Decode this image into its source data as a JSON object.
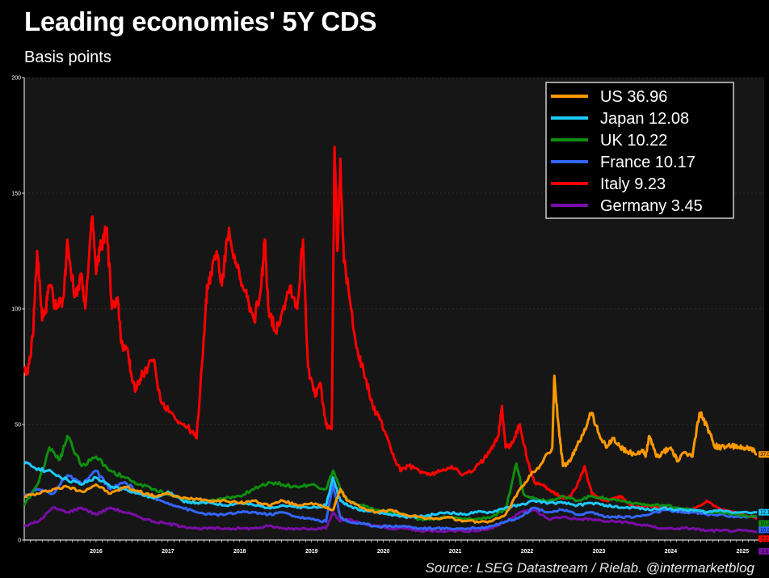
{
  "title": "Leading economies' 5Y CDS",
  "subtitle": "Basis points",
  "source": "Source: LSEG Datastream / Rielab. @intermarketblog",
  "colors": {
    "background": "#000000",
    "plot": "#161616",
    "grid": "#444444"
  },
  "chart_data": {
    "type": "line",
    "title": "Leading economies' 5Y CDS",
    "subtitle": "Basis points",
    "ylim": [
      0,
      200
    ],
    "yticks": [
      0,
      50,
      100,
      150,
      200
    ],
    "xlim": [
      2015.5,
      2025.8
    ],
    "xticks": [
      2016,
      2017,
      2018,
      2019,
      2020,
      2021,
      2022,
      2023,
      2024,
      2025
    ],
    "grid": true,
    "legend_position": "top-right",
    "series": [
      {
        "name": "US",
        "legend": "US 36.96",
        "color": "#ff9900",
        "end_label": "37.0",
        "x": [
          2015.5,
          2015.7,
          2015.9,
          2016.1,
          2016.3,
          2016.5,
          2016.7,
          2016.9,
          2017.1,
          2017.3,
          2017.5,
          2017.7,
          2017.9,
          2018.1,
          2018.3,
          2018.5,
          2018.7,
          2018.9,
          2019.1,
          2019.3,
          2019.5,
          2019.7,
          2019.8,
          2019.9,
          2020.0,
          2020.2,
          2020.4,
          2020.6,
          2020.8,
          2021.0,
          2021.2,
          2021.4,
          2021.6,
          2021.8,
          2022.0,
          2022.2,
          2022.4,
          2022.55,
          2022.7,
          2022.85,
          2022.88,
          2022.95,
          2023.0,
          2023.1,
          2023.2,
          2023.3,
          2023.4,
          2023.5,
          2023.6,
          2023.7,
          2023.8,
          2023.9,
          2024.0,
          2024.1,
          2024.15,
          2024.2,
          2024.3,
          2024.4,
          2024.5,
          2024.6,
          2024.7,
          2024.8,
          2024.9,
          2025.0,
          2025.1,
          2025.2,
          2025.3,
          2025.4,
          2025.5,
          2025.6,
          2025.7
        ],
        "y": [
          19,
          20,
          22,
          23,
          21,
          24,
          20,
          23,
          21,
          19,
          20,
          18,
          18,
          17,
          17,
          16,
          17,
          15,
          17,
          15,
          16,
          14,
          13,
          22,
          17,
          14,
          12,
          13,
          11,
          10,
          9,
          10,
          8,
          8,
          8,
          11,
          22,
          28,
          33,
          40,
          71,
          45,
          32,
          34,
          41,
          48,
          55,
          46,
          40,
          44,
          40,
          38,
          37,
          39,
          36,
          45,
          36,
          38,
          40,
          34,
          38,
          36,
          55,
          50,
          41,
          40,
          41,
          40,
          40,
          40,
          37
        ]
      },
      {
        "name": "Japan",
        "legend": "Japan 12.08",
        "color": "#1ec9ff",
        "end_label": "12.1",
        "x": [
          2015.5,
          2015.7,
          2015.9,
          2016.1,
          2016.3,
          2016.5,
          2016.7,
          2016.9,
          2017.1,
          2017.3,
          2017.5,
          2017.7,
          2017.9,
          2018.1,
          2018.3,
          2018.5,
          2018.7,
          2018.9,
          2019.1,
          2019.3,
          2019.5,
          2019.7,
          2019.8,
          2019.9,
          2020.0,
          2020.2,
          2020.4,
          2020.6,
          2020.8,
          2021.0,
          2021.2,
          2021.4,
          2021.6,
          2021.8,
          2022.0,
          2022.2,
          2022.4,
          2022.6,
          2022.8,
          2023.0,
          2023.2,
          2023.4,
          2023.6,
          2023.8,
          2024.0,
          2024.2,
          2024.4,
          2024.6,
          2024.8,
          2025.0,
          2025.2,
          2025.4,
          2025.7
        ],
        "y": [
          33,
          31,
          29,
          26,
          24,
          27,
          23,
          22,
          20,
          18,
          21,
          17,
          16,
          16,
          15,
          16,
          15,
          14,
          15,
          14,
          14,
          15,
          27,
          17,
          15,
          13,
          12,
          11,
          10,
          10,
          11,
          12,
          11,
          12,
          12,
          14,
          15,
          17,
          16,
          16,
          15,
          16,
          15,
          14,
          14,
          13,
          14,
          13,
          13,
          12,
          13,
          12,
          12
        ]
      },
      {
        "name": "UK",
        "legend": "UK 10.22",
        "color": "#0e8f0e",
        "end_label": "10.2",
        "x": [
          2015.5,
          2015.7,
          2015.85,
          2016.0,
          2016.1,
          2016.3,
          2016.5,
          2016.7,
          2016.9,
          2017.1,
          2017.3,
          2017.5,
          2017.7,
          2017.9,
          2018.1,
          2018.3,
          2018.5,
          2018.7,
          2018.9,
          2019.1,
          2019.3,
          2019.5,
          2019.7,
          2019.8,
          2019.9,
          2020.0,
          2020.2,
          2020.4,
          2020.6,
          2020.8,
          2021.0,
          2021.2,
          2021.4,
          2021.6,
          2021.8,
          2022.0,
          2022.2,
          2022.35,
          2022.45,
          2022.6,
          2022.8,
          2023.0,
          2023.2,
          2023.4,
          2023.6,
          2023.8,
          2024.0,
          2024.2,
          2024.4,
          2024.6,
          2024.8,
          2025.0,
          2025.2,
          2025.4,
          2025.7
        ],
        "y": [
          15,
          25,
          40,
          35,
          45,
          32,
          36,
          30,
          27,
          24,
          22,
          20,
          18,
          16,
          17,
          18,
          19,
          22,
          25,
          24,
          23,
          24,
          22,
          30,
          22,
          17,
          15,
          13,
          12,
          11,
          9,
          9,
          10,
          9,
          9,
          10,
          13,
          33,
          20,
          18,
          17,
          19,
          17,
          19,
          18,
          17,
          16,
          15,
          15,
          14,
          13,
          12,
          12,
          11,
          10
        ]
      },
      {
        "name": "France",
        "legend": "France 10.17",
        "color": "#3366ff",
        "end_label": "10.2",
        "x": [
          2015.5,
          2015.7,
          2015.9,
          2016.1,
          2016.3,
          2016.5,
          2016.7,
          2016.9,
          2017.1,
          2017.3,
          2017.5,
          2017.7,
          2017.9,
          2018.1,
          2018.3,
          2018.5,
          2018.7,
          2018.9,
          2019.1,
          2019.3,
          2019.5,
          2019.7,
          2019.8,
          2019.9,
          2020.0,
          2020.2,
          2020.4,
          2020.6,
          2020.8,
          2021.0,
          2021.2,
          2021.4,
          2021.6,
          2021.8,
          2022.0,
          2022.2,
          2022.4,
          2022.6,
          2022.8,
          2023.0,
          2023.2,
          2023.4,
          2023.6,
          2023.8,
          2024.0,
          2024.2,
          2024.4,
          2024.6,
          2024.8,
          2025.0,
          2025.2,
          2025.4,
          2025.7
        ],
        "y": [
          19,
          22,
          20,
          28,
          24,
          30,
          22,
          25,
          20,
          18,
          16,
          14,
          12,
          11,
          11,
          12,
          12,
          11,
          12,
          10,
          9,
          8,
          24,
          10,
          8,
          7,
          6,
          6,
          6,
          5,
          5,
          5,
          5,
          5,
          6,
          8,
          10,
          14,
          12,
          13,
          11,
          12,
          10,
          10,
          10,
          11,
          13,
          12,
          12,
          11,
          11,
          10,
          10
        ]
      },
      {
        "name": "Italy",
        "legend": "Italy 9.23",
        "color": "#ff0000",
        "end_label": "9.2",
        "x": [
          2015.5,
          2015.55,
          2015.62,
          2015.68,
          2015.75,
          2015.8,
          2015.85,
          2015.95,
          2016.05,
          2016.1,
          2016.2,
          2016.3,
          2016.35,
          2016.45,
          2016.5,
          2016.55,
          2016.65,
          2016.72,
          2016.8,
          2016.85,
          2016.95,
          2017.0,
          2017.05,
          2017.15,
          2017.3,
          2017.4,
          2017.55,
          2017.7,
          2017.8,
          2017.9,
          2018.0,
          2018.05,
          2018.1,
          2018.18,
          2018.25,
          2018.35,
          2018.45,
          2018.52,
          2018.6,
          2018.7,
          2018.8,
          2018.85,
          2018.9,
          2019.0,
          2019.1,
          2019.2,
          2019.3,
          2019.38,
          2019.45,
          2019.55,
          2019.62,
          2019.7,
          2019.78,
          2019.82,
          2019.86,
          2019.9,
          2019.95,
          2020.05,
          2020.15,
          2020.25,
          2020.35,
          2020.45,
          2020.55,
          2020.65,
          2020.75,
          2020.85,
          2021.0,
          2021.15,
          2021.3,
          2021.45,
          2021.6,
          2021.75,
          2021.9,
          2022.0,
          2022.1,
          2022.15,
          2022.2,
          2022.3,
          2022.4,
          2022.5,
          2022.6,
          2022.7,
          2022.8,
          2022.9,
          2023.0,
          2023.1,
          2023.2,
          2023.3,
          2023.4,
          2023.5,
          2023.6,
          2023.7,
          2023.8,
          2023.9,
          2024.0,
          2024.2,
          2024.4,
          2024.6,
          2024.8,
          2025.0,
          2025.2,
          2025.4,
          2025.7
        ],
        "y": [
          75,
          72,
          88,
          125,
          95,
          100,
          110,
          100,
          105,
          130,
          105,
          115,
          100,
          140,
          115,
          125,
          135,
          100,
          105,
          85,
          80,
          70,
          65,
          72,
          78,
          60,
          55,
          50,
          48,
          44,
          88,
          110,
          115,
          125,
          110,
          135,
          120,
          110,
          105,
          95,
          110,
          130,
          100,
          90,
          100,
          110,
          100,
          130,
          75,
          62,
          68,
          50,
          48,
          170,
          125,
          165,
          120,
          100,
          80,
          70,
          58,
          52,
          45,
          35,
          30,
          32,
          30,
          28,
          30,
          32,
          28,
          30,
          35,
          40,
          45,
          58,
          40,
          42,
          50,
          35,
          25,
          24,
          22,
          20,
          18,
          19,
          24,
          32,
          20,
          18,
          17,
          18,
          19,
          16,
          14,
          15,
          14,
          13,
          13,
          17,
          13,
          12,
          9
        ]
      },
      {
        "name": "Germany",
        "legend": "Germany 3.45",
        "color": "#7a0ea8",
        "end_label": "3.5",
        "x": [
          2015.5,
          2015.7,
          2015.9,
          2016.1,
          2016.3,
          2016.5,
          2016.7,
          2016.9,
          2017.1,
          2017.3,
          2017.5,
          2017.7,
          2017.9,
          2018.1,
          2018.3,
          2018.5,
          2018.7,
          2018.9,
          2019.1,
          2019.3,
          2019.5,
          2019.7,
          2019.8,
          2019.9,
          2020.0,
          2020.2,
          2020.4,
          2020.6,
          2020.8,
          2021.0,
          2021.2,
          2021.4,
          2021.6,
          2021.8,
          2022.0,
          2022.2,
          2022.4,
          2022.6,
          2022.8,
          2023.0,
          2023.2,
          2023.4,
          2023.6,
          2023.8,
          2024.0,
          2024.2,
          2024.4,
          2024.6,
          2024.8,
          2025.0,
          2025.2,
          2025.4,
          2025.7
        ],
        "y": [
          6,
          8,
          14,
          12,
          14,
          11,
          14,
          12,
          10,
          8,
          7,
          6,
          5,
          5,
          5,
          5,
          5,
          6,
          5,
          5,
          5,
          5,
          12,
          8,
          9,
          7,
          6,
          5,
          5,
          4,
          4,
          4,
          4,
          4,
          5,
          8,
          12,
          13,
          9,
          10,
          9,
          9,
          8,
          8,
          7,
          6,
          5,
          5,
          5,
          4,
          4,
          4,
          3.5
        ]
      }
    ]
  }
}
